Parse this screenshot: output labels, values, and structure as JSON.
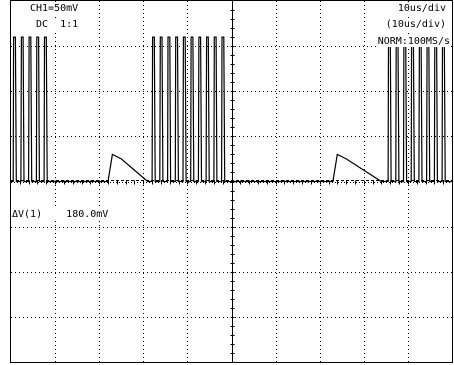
{
  "header": {
    "channel": "CH1=50mV",
    "coupling": "DC  1:1",
    "timebase": "10us/div",
    "timebase_delayed": "(10us/div)",
    "acquisition": "NORM:100MS/s"
  },
  "measurement": {
    "text": "ΔV(1)    180.0mV"
  },
  "chart_data": {
    "type": "line",
    "title": "",
    "xlabel": "",
    "ylabel": "",
    "x_units": "us",
    "y_units": "mV",
    "xlim": [
      0,
      100
    ],
    "ylim": [
      -200,
      200
    ],
    "grid": true,
    "x_divisions": 10,
    "y_divisions": 8,
    "x_div_value": "10us/div",
    "y_div_value": "50mV/div",
    "baseline_mV": 0,
    "cursor_mV": 2,
    "pulse_peak_mV": 160,
    "pulse_width_us": 0.4,
    "bursts": [
      {
        "start_us": 0.5,
        "count": 5,
        "period_us": 1.75
      },
      {
        "start_us": 32.0,
        "count": 10,
        "period_us": 1.75
      },
      {
        "start_us": 85.5,
        "count": 8,
        "period_us": 1.75
      }
    ],
    "droops": [
      {
        "start_us": 22.0,
        "end_us": 31.0,
        "peak_mV": 30
      },
      {
        "start_us": 73.0,
        "end_us": 84.0,
        "peak_mV": 30
      }
    ],
    "series": [
      {
        "x": [
          0,
          0.5,
          0.6,
          1.0,
          1.2,
          2.25,
          2.35,
          2.75,
          2.95,
          4.0,
          4.1,
          4.5,
          4.7,
          5.75,
          5.85,
          6.25,
          6.45,
          7.5,
          7.6,
          8.0,
          8.2,
          22.0,
          23.0,
          25.0,
          31.0,
          32.0,
          32.1,
          32.5,
          32.7,
          33.75,
          33.85,
          34.25,
          34.45,
          35.5,
          35.6,
          36.0,
          36.2,
          37.25,
          37.35,
          37.75,
          37.95,
          39.0,
          39.1,
          39.5,
          39.7,
          40.75,
          40.85,
          41.25,
          41.45,
          42.5,
          42.6,
          43.0,
          43.2,
          44.25,
          44.35,
          44.75,
          44.95,
          46.0,
          46.1,
          46.5,
          46.7,
          47.75,
          47.85,
          48.25,
          48.45,
          73.0,
          74.0,
          76.0,
          84.0,
          85.5,
          85.6,
          86.0,
          86.2,
          87.25,
          87.35,
          87.75,
          87.95,
          89.0,
          89.1,
          89.5,
          89.7,
          90.75,
          90.85,
          91.25,
          91.45,
          92.5,
          92.6,
          93.0,
          93.2,
          94.25,
          94.35,
          94.75,
          94.95,
          96.0,
          96.1,
          96.5,
          96.7,
          97.75,
          97.85,
          98.25,
          98.45,
          100
        ],
        "y": [
          0,
          0,
          160,
          160,
          0,
          0,
          160,
          160,
          0,
          0,
          160,
          160,
          0,
          0,
          160,
          160,
          0,
          0,
          160,
          160,
          0,
          0,
          30,
          25,
          0,
          0,
          160,
          160,
          0,
          0,
          160,
          160,
          0,
          0,
          160,
          160,
          0,
          0,
          160,
          160,
          0,
          0,
          160,
          160,
          0,
          0,
          160,
          160,
          0,
          0,
          160,
          160,
          0,
          0,
          160,
          160,
          0,
          0,
          160,
          160,
          0,
          0,
          160,
          160,
          0,
          0,
          30,
          25,
          0,
          0,
          160,
          160,
          0,
          0,
          160,
          160,
          0,
          0,
          160,
          160,
          0,
          0,
          160,
          160,
          0,
          0,
          160,
          160,
          0,
          0,
          160,
          160,
          0,
          0,
          160,
          160,
          0,
          0,
          160,
          160,
          0,
          0
        ]
      }
    ]
  }
}
